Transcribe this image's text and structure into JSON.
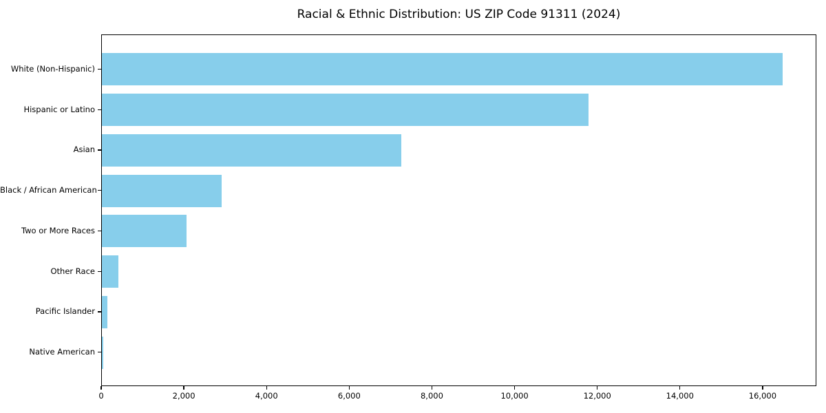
{
  "chart_data": {
    "type": "bar",
    "orientation": "horizontal",
    "title": "Racial & Ethnic Distribution: US ZIP Code 91311 (2024)",
    "xlabel": "",
    "ylabel": "",
    "categories": [
      "White (Non-Hispanic)",
      "Hispanic or Latino",
      "Asian",
      "Black / African American",
      "Two or More Races",
      "Other Race",
      "Pacific Islander",
      "Native American"
    ],
    "values": [
      16500,
      11800,
      7250,
      2900,
      2050,
      400,
      130,
      30
    ],
    "xlim": [
      0,
      17300
    ],
    "xticks": [
      0,
      2000,
      4000,
      6000,
      8000,
      10000,
      12000,
      14000,
      16000
    ],
    "bar_color": "#87CEEB",
    "frame_color": "#000000",
    "background_color": "#ffffff",
    "grid": false,
    "legend": null
  }
}
